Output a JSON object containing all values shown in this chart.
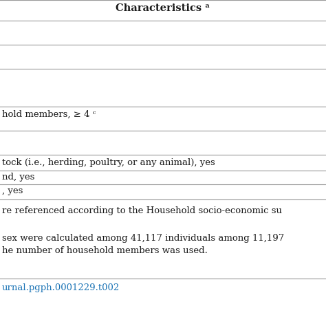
{
  "title": "Characteristics ᵃ",
  "row_texts": [
    "",
    "",
    "",
    "hold members, ≥ 4 ᶜ",
    "",
    "tock (i.e., herding, poultry, or any animal), yes",
    "nd, yes",
    ", yes"
  ],
  "footnote1": "re referenced according to the Household socio-economic su",
  "footnote2": "sex were calculated among 41,117 individuals among 11,197",
  "footnote3": "he number of household members was used.",
  "doi": "urnal.pgph.0001229.t002",
  "background_color": "#ffffff",
  "line_color": "#999999",
  "text_color": "#1a1a1a",
  "doi_color": "#1a73b5",
  "header_fontsize": 10.5,
  "body_fontsize": 9.5,
  "footnote_fontsize": 9.5
}
